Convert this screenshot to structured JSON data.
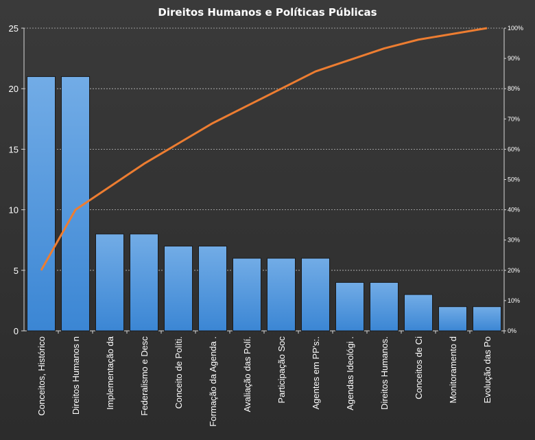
{
  "chart_data": {
    "type": "bar",
    "title": "Direitos  Humanos e Políticas Públicas",
    "categories": [
      "Conceitos, Histórico",
      "Direitos Humanos n",
      "Implementação da",
      "Federalismo e Desc",
      "Conceito de Políti.",
      "Formação da Agenda .",
      "Avaliação das Polí.",
      "Participação Soc",
      "Agentes em PP's:.",
      "Agendas Ideológi .",
      "Direitos Humanos.",
      "Conceitos de Ci",
      "Monitoramento d",
      "Evolução das Po"
    ],
    "values": [
      21,
      21,
      8,
      8,
      7,
      7,
      6,
      6,
      6,
      4,
      4,
      3,
      2,
      2
    ],
    "cumulative_percent": [
      20,
      40,
      47.6,
      55.2,
      61.9,
      68.6,
      74.3,
      80.0,
      85.7,
      89.5,
      93.3,
      96.2,
      98.1,
      100
    ],
    "ylim": [
      0,
      25
    ],
    "yticks": [
      0,
      5,
      10,
      15,
      20,
      25
    ],
    "y2lim": [
      0,
      100
    ],
    "y2ticks": [
      "0%",
      "10%",
      "20%",
      "30%",
      "40%",
      "50%",
      "60%",
      "70%",
      "80%",
      "90%",
      "100%"
    ],
    "grid": true,
    "colors": {
      "bar": "#4a90d9",
      "bar_top": "#6aa9ea",
      "line": "#ed7d31",
      "grid": "#bfbfbf",
      "text": "#ffffff"
    }
  }
}
